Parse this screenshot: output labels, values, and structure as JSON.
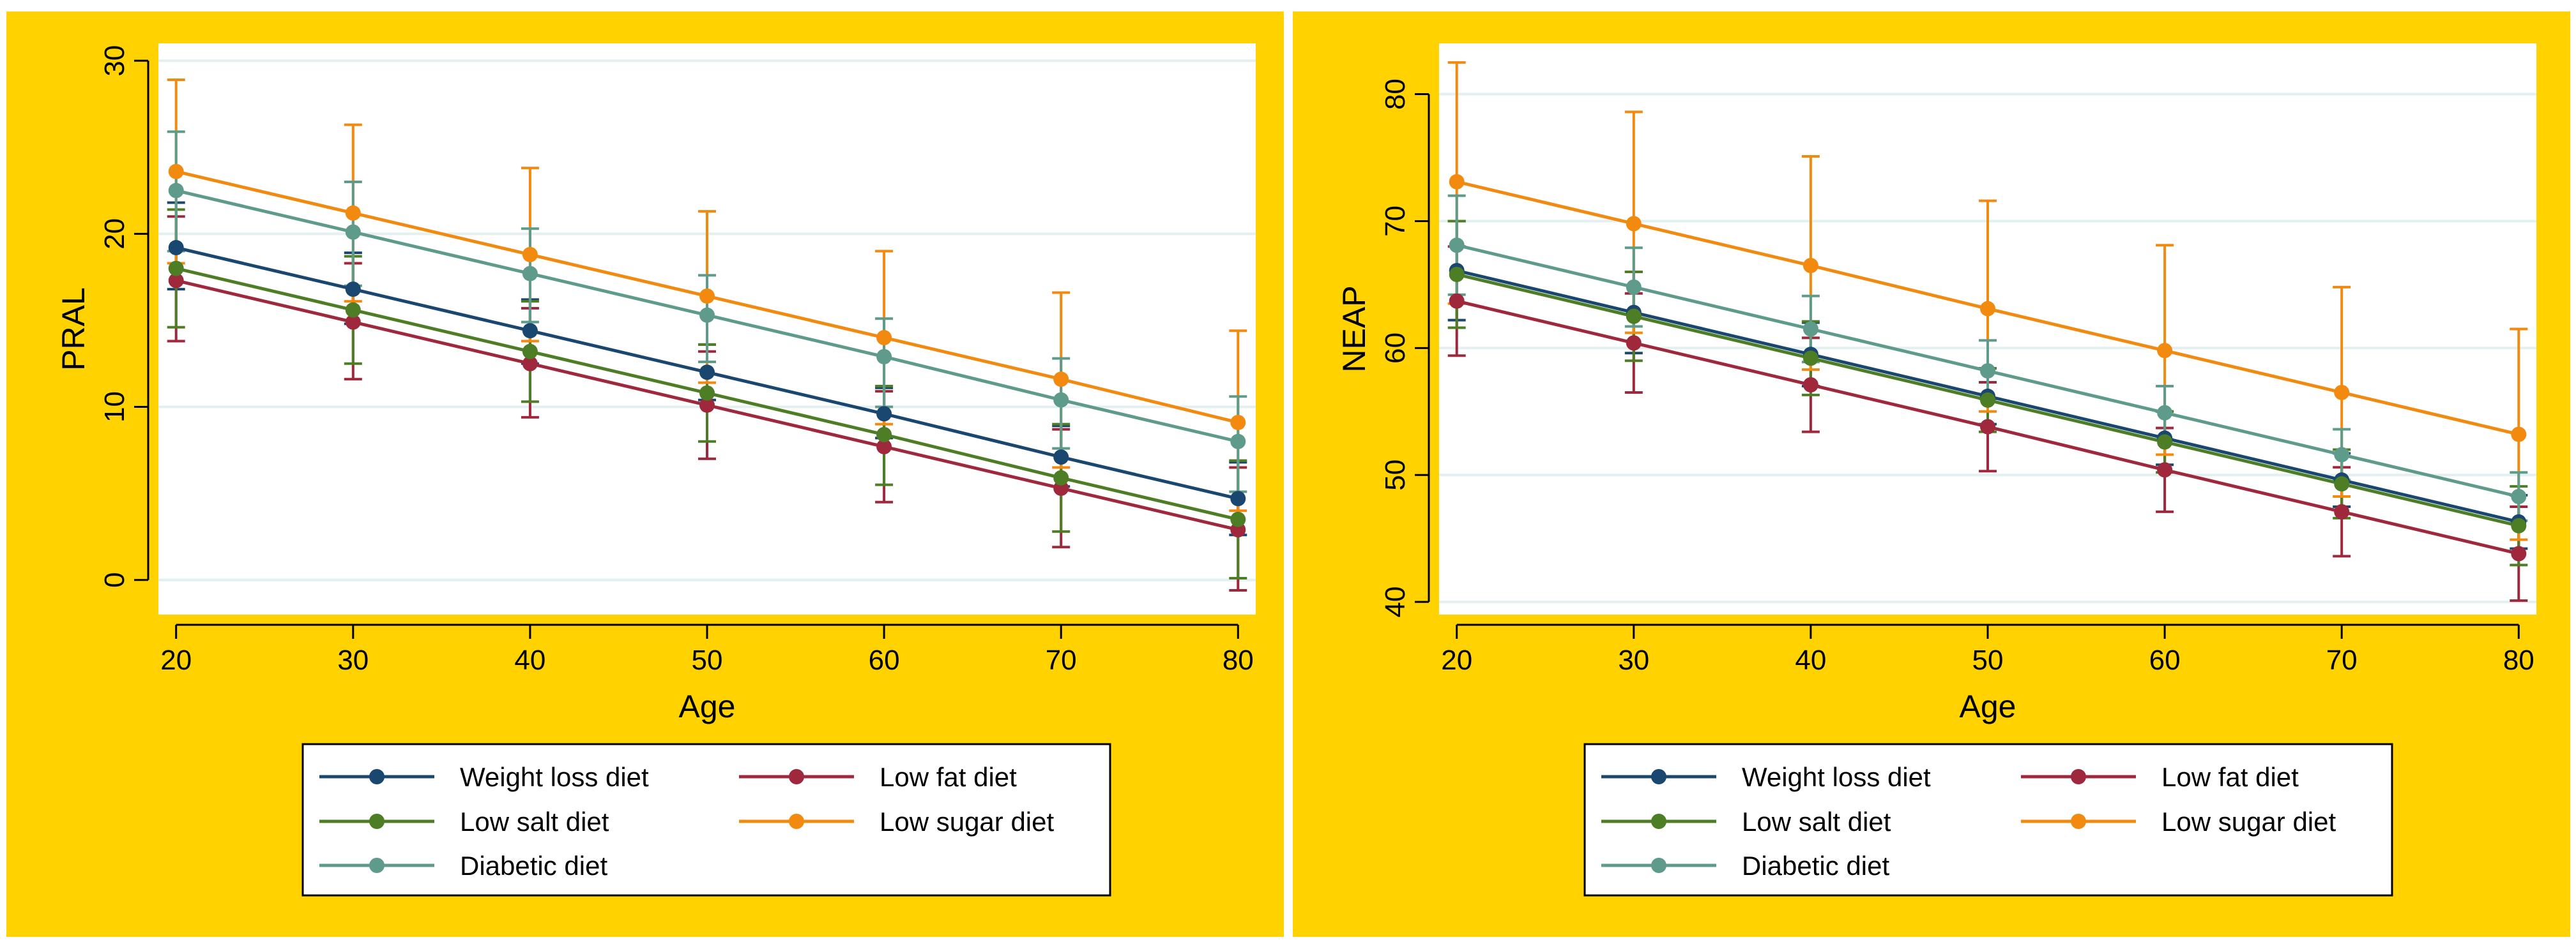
{
  "figure": {
    "background": "#ffffff",
    "panel_background": "#ffd200",
    "plot_background": "#ffffff",
    "grid_color": "#e4efef",
    "legend_border": "#000000"
  },
  "chart_data": [
    {
      "type": "line",
      "title": "",
      "xlabel": "Age",
      "ylabel": "PRAL",
      "xlim": [
        19,
        81
      ],
      "ylim": [
        -2,
        31
      ],
      "xticks": [
        20,
        30,
        40,
        50,
        60,
        70,
        80
      ],
      "yticks": [
        0,
        10,
        20,
        30
      ],
      "grid": true,
      "error_bars": "confidence interval",
      "x": [
        20,
        30,
        40,
        50,
        60,
        70,
        80
      ],
      "series": [
        {
          "name": "Weight loss diet",
          "color": "#1a476f",
          "values": [
            19.2,
            16.8,
            14.4,
            12.0,
            9.6,
            7.1,
            4.7
          ],
          "lower": [
            16.8,
            14.8,
            12.5,
            10.4,
            8.2,
            5.4,
            2.6
          ],
          "upper": [
            21.8,
            18.9,
            16.2,
            13.6,
            11.1,
            8.9,
            6.8
          ]
        },
        {
          "name": "Low fat diet",
          "color": "#a0283d",
          "values": [
            17.3,
            14.9,
            12.5,
            10.1,
            7.7,
            5.3,
            2.9
          ],
          "lower": [
            13.8,
            11.6,
            9.4,
            7.0,
            4.5,
            1.9,
            -0.6
          ],
          "upper": [
            21.0,
            18.3,
            15.7,
            13.2,
            10.9,
            8.7,
            6.5
          ]
        },
        {
          "name": "Low salt diet",
          "color": "#4d7d24",
          "values": [
            18.0,
            15.6,
            13.2,
            10.8,
            8.4,
            5.9,
            3.5
          ],
          "lower": [
            14.6,
            12.5,
            10.3,
            8.0,
            5.5,
            2.8,
            0.1
          ],
          "upper": [
            21.4,
            18.7,
            16.1,
            13.6,
            11.2,
            9.0,
            6.9
          ]
        },
        {
          "name": "Low sugar diet",
          "color": "#f28a10",
          "values": [
            23.6,
            21.2,
            18.8,
            16.4,
            14.0,
            11.6,
            9.1
          ],
          "lower": [
            18.3,
            16.1,
            13.8,
            11.4,
            9.0,
            6.5,
            4.0
          ],
          "upper": [
            28.9,
            26.3,
            23.8,
            21.3,
            19.0,
            16.6,
            14.4
          ]
        },
        {
          "name": "Diabetic diet",
          "color": "#5e9b8a",
          "values": [
            22.5,
            20.1,
            17.7,
            15.3,
            12.9,
            10.4,
            8.0
          ],
          "lower": [
            19.0,
            17.0,
            14.9,
            12.6,
            10.0,
            7.6,
            5.1
          ],
          "upper": [
            25.9,
            23.0,
            20.3,
            17.6,
            15.1,
            12.8,
            10.6
          ]
        }
      ],
      "legend": {
        "position": "bottom",
        "columns": 2
      }
    },
    {
      "type": "line",
      "title": "",
      "xlabel": "Age",
      "ylabel": "NEAP",
      "xlim": [
        19,
        81
      ],
      "ylim": [
        39,
        84
      ],
      "xticks": [
        20,
        30,
        40,
        50,
        60,
        70,
        80
      ],
      "yticks": [
        40,
        50,
        60,
        70,
        80
      ],
      "grid": true,
      "error_bars": "confidence interval",
      "x": [
        20,
        30,
        40,
        50,
        60,
        70,
        80
      ],
      "series": [
        {
          "name": "Weight loss diet",
          "color": "#1a476f",
          "values": [
            66.1,
            62.8,
            59.5,
            56.2,
            52.9,
            49.6,
            46.3
          ],
          "lower": [
            62.2,
            59.6,
            57.0,
            54.0,
            50.8,
            47.5,
            44.2
          ],
          "upper": [
            70.0,
            66.0,
            62.0,
            58.4,
            55.0,
            51.7,
            48.4
          ]
        },
        {
          "name": "Low fat diet",
          "color": "#a0283d",
          "values": [
            63.7,
            60.4,
            57.1,
            53.8,
            50.4,
            47.1,
            43.8
          ],
          "lower": [
            59.4,
            56.5,
            53.4,
            50.3,
            47.1,
            43.6,
            40.1
          ],
          "upper": [
            68.0,
            64.3,
            60.8,
            57.3,
            53.7,
            50.6,
            47.5
          ]
        },
        {
          "name": "Low salt diet",
          "color": "#4d7d24",
          "values": [
            65.8,
            62.5,
            59.2,
            55.9,
            52.6,
            49.3,
            46.0
          ],
          "lower": [
            61.6,
            59.0,
            56.3,
            53.4,
            50.2,
            46.6,
            42.9
          ],
          "upper": [
            70.0,
            66.0,
            62.1,
            58.4,
            55.0,
            52.0,
            49.1
          ]
        },
        {
          "name": "Low sugar diet",
          "color": "#f28a10",
          "values": [
            73.1,
            69.8,
            66.5,
            63.1,
            59.8,
            56.5,
            53.2
          ],
          "lower": [
            63.5,
            61.2,
            58.3,
            55.0,
            51.6,
            48.3,
            44.9
          ],
          "upper": [
            82.5,
            78.6,
            75.1,
            71.6,
            68.1,
            64.8,
            61.5
          ]
        },
        {
          "name": "Diabetic diet",
          "color": "#5e9b8a",
          "values": [
            68.1,
            64.8,
            61.5,
            58.2,
            54.9,
            51.6,
            48.3
          ],
          "lower": [
            64.2,
            61.7,
            58.9,
            56.0,
            52.8,
            49.6,
            46.4
          ],
          "upper": [
            72.0,
            67.9,
            64.1,
            60.6,
            57.0,
            53.6,
            50.2
          ]
        }
      ],
      "legend": {
        "position": "bottom",
        "columns": 2
      }
    }
  ]
}
